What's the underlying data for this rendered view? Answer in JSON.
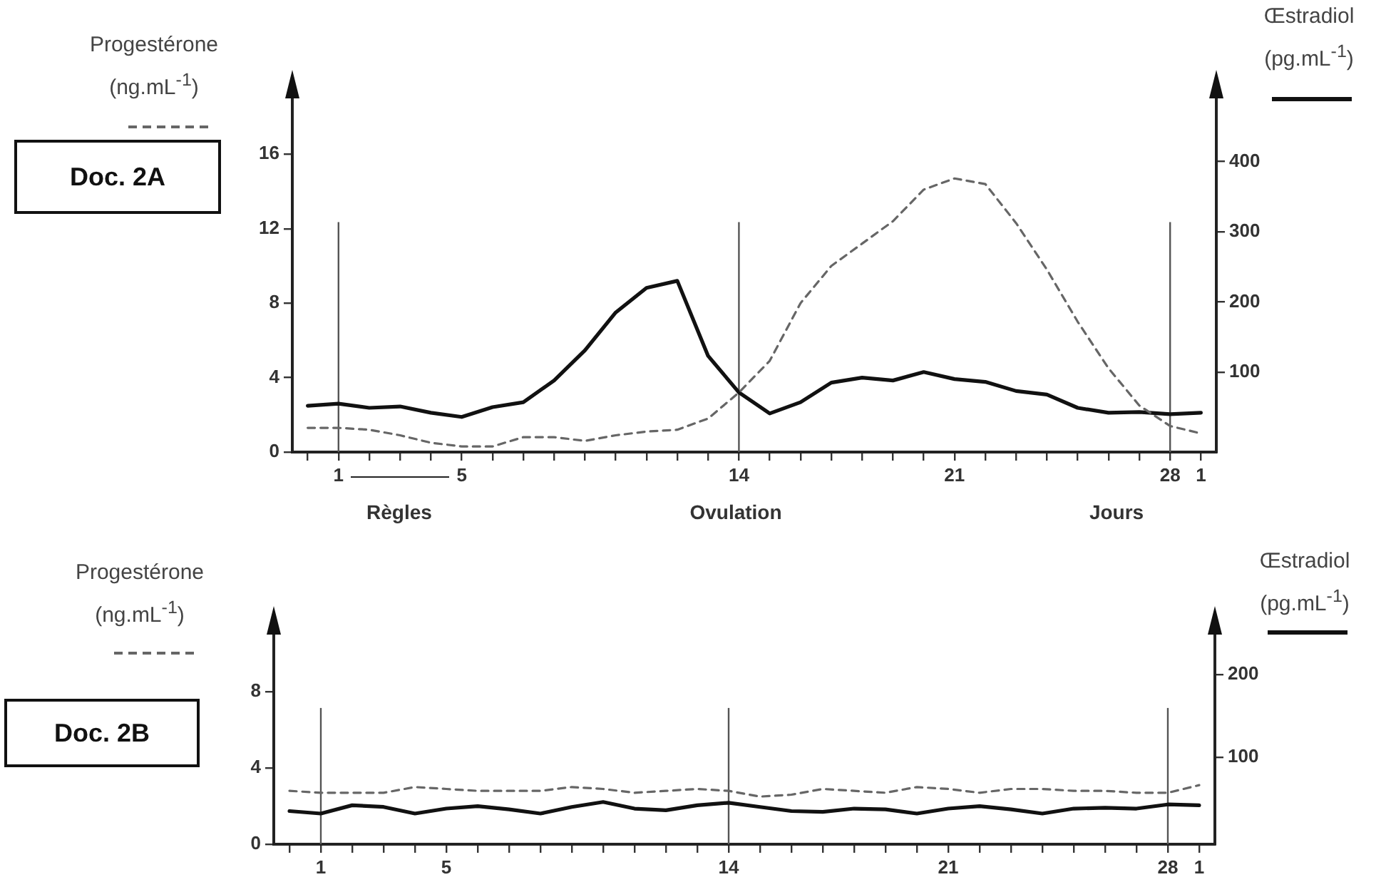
{
  "chart_data": [
    {
      "type": "line",
      "title": "Doc. 2A",
      "ylabel": "Progestérone (ng.mL$^{-1}$)",
      "y2label": "Œstradiol (pg.mL$^{-1}$)",
      "xlabel": "Jours",
      "annotations": [
        "Règles",
        "Ovulation"
      ],
      "categories": [
        null,
        "1",
        null,
        null,
        null,
        "5",
        null,
        null,
        null,
        null,
        null,
        null,
        null,
        null,
        "14",
        null,
        null,
        null,
        null,
        null,
        null,
        "21",
        null,
        null,
        null,
        null,
        null,
        null,
        "28",
        "1"
      ],
      "ylim": [
        0,
        19
      ],
      "yticks": [
        0,
        4,
        8,
        12,
        16
      ],
      "y2lim": [
        -14,
        490
      ],
      "y2ticks": [
        100,
        200,
        300,
        400
      ],
      "ref_lines": [
        {
          "axis": "x",
          "value": "1",
          "color": "#555555"
        },
        {
          "axis": "x",
          "value": "14",
          "color": "#555555"
        },
        {
          "axis": "x",
          "value": "28",
          "color": "#555555"
        }
      ],
      "series": [
        {
          "color": "#666666",
          "line_style": "dashed",
          "values": [
            1.3,
            1.3,
            1.2,
            0.9,
            0.5,
            0.3,
            0.3,
            0.8,
            0.8,
            0.6,
            0.9,
            1.1,
            1.2,
            1.8,
            3.2,
            4.9,
            8.0,
            10.0,
            11.2,
            12.4,
            14.1,
            14.7,
            14.4,
            12.3,
            9.8,
            7.0,
            4.5,
            2.5,
            1.4,
            1.0
          ]
        },
        {
          "color": "#111111",
          "line_style": "solid",
          "axis": "y2",
          "values": [
            52,
            55,
            49,
            51,
            42,
            36,
            50,
            57,
            88,
            131,
            185,
            220,
            230,
            123,
            71,
            41,
            57,
            85,
            92,
            88,
            100,
            90,
            86,
            73,
            68,
            49,
            42,
            43,
            40,
            42
          ]
        }
      ]
    },
    {
      "type": "line",
      "title": "Doc. 2B",
      "ylabel": "Progestérone (ng.mL$^{-1}$)",
      "y2label": "Œstradiol (pg.mL$^{-1}$)",
      "categories": [
        null,
        "1",
        null,
        null,
        null,
        "5",
        null,
        null,
        null,
        null,
        null,
        null,
        null,
        null,
        "14",
        null,
        null,
        null,
        null,
        null,
        null,
        "21",
        null,
        null,
        null,
        null,
        null,
        null,
        "28",
        "1"
      ],
      "ylim": [
        0,
        11
      ],
      "yticks": [
        0,
        4,
        8
      ],
      "y2lim": [
        -5,
        248
      ],
      "y2ticks": [
        100,
        200
      ],
      "ref_lines": [
        {
          "axis": "x",
          "value": "1",
          "color": "#555555"
        },
        {
          "axis": "x",
          "value": "14",
          "color": "#555555"
        },
        {
          "axis": "x",
          "value": "28",
          "color": "#555555"
        }
      ],
      "series": [
        {
          "color": "#666666",
          "line_style": "dashed",
          "values": [
            2.8,
            2.7,
            2.7,
            2.7,
            3.0,
            2.9,
            2.8,
            2.8,
            2.8,
            3.0,
            2.9,
            2.7,
            2.8,
            2.9,
            2.8,
            2.5,
            2.6,
            2.9,
            2.8,
            2.7,
            3.0,
            2.9,
            2.7,
            2.9,
            2.9,
            2.8,
            2.8,
            2.7,
            2.7,
            3.1
          ]
        },
        {
          "color": "#111111",
          "line_style": "solid",
          "axis": "y2",
          "values": [
            35,
            32,
            42,
            40,
            32,
            38,
            41,
            37,
            32,
            40,
            46,
            38,
            36,
            42,
            45,
            40,
            35,
            34,
            38,
            37,
            32,
            38,
            41,
            37,
            32,
            38,
            39,
            38,
            43,
            42
          ]
        }
      ]
    }
  ]
}
